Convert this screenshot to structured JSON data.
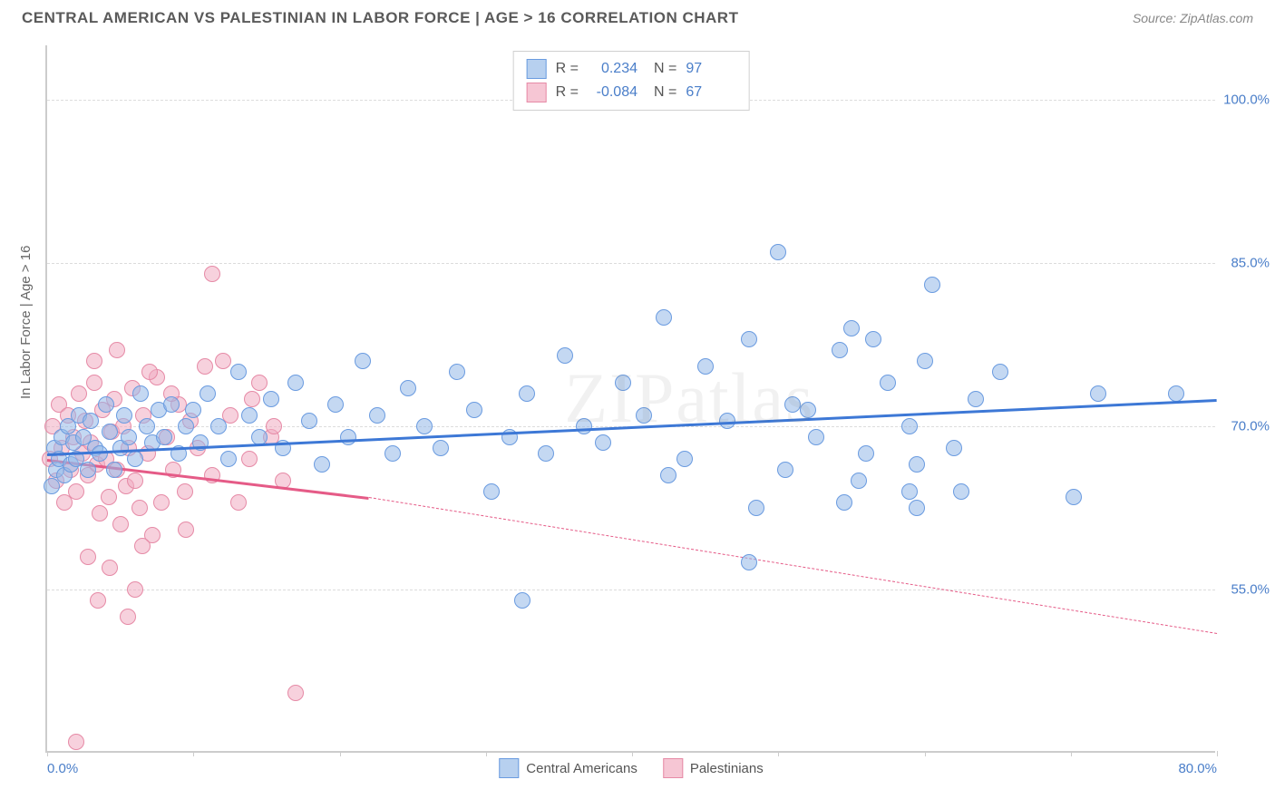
{
  "header": {
    "title": "CENTRAL AMERICAN VS PALESTINIAN IN LABOR FORCE | AGE > 16 CORRELATION CHART",
    "source_prefix": "Source: ",
    "source_name": "ZipAtlas.com"
  },
  "chart": {
    "type": "scatter",
    "ylabel": "In Labor Force | Age > 16",
    "watermark": "ZIPatlas",
    "background_color": "#ffffff",
    "grid_color": "#dcdcdc",
    "axis_color": "#cccccc",
    "tick_label_color": "#4a7ec9",
    "xlim": [
      0,
      80
    ],
    "ylim": [
      40,
      105
    ],
    "yticks": [
      {
        "v": 55.0,
        "label": "55.0%"
      },
      {
        "v": 70.0,
        "label": "70.0%"
      },
      {
        "v": 85.0,
        "label": "85.0%"
      },
      {
        "v": 100.0,
        "label": "100.0%"
      }
    ],
    "xticks": [
      {
        "v": 0.0,
        "label": "0.0%",
        "pos": "first"
      },
      {
        "v": 80.0,
        "label": "80.0%",
        "pos": "last"
      }
    ],
    "xtick_marks": [
      0,
      10,
      20,
      30,
      40,
      50,
      60,
      70,
      80
    ],
    "legend_top": {
      "rows": [
        {
          "swatch_fill": "#b7d0ef",
          "swatch_border": "#6a9be0",
          "r_label": "R =",
          "r_val": "0.234",
          "n_label": "N =",
          "n_val": "97"
        },
        {
          "swatch_fill": "#f6c6d4",
          "swatch_border": "#e68aa6",
          "r_label": "R =",
          "r_val": "-0.084",
          "n_label": "N =",
          "n_val": "67"
        }
      ]
    },
    "legend_bottom": {
      "items": [
        {
          "swatch_fill": "#b7d0ef",
          "swatch_border": "#6a9be0",
          "label": "Central Americans"
        },
        {
          "swatch_fill": "#f6c6d4",
          "swatch_border": "#e68aa6",
          "label": "Palestinians"
        }
      ]
    },
    "series_blue": {
      "marker_fill": "rgba(147,184,232,0.55)",
      "marker_stroke": "#6a9be0",
      "marker_radius": 9,
      "trend_color": "#3d78d6",
      "trend_solid": {
        "x1": 0,
        "y1": 67.5,
        "x2": 80,
        "y2": 72.5
      },
      "points": [
        [
          0.3,
          64.5
        ],
        [
          0.5,
          68
        ],
        [
          0.6,
          66
        ],
        [
          0.8,
          67
        ],
        [
          1.0,
          69
        ],
        [
          1.2,
          65.5
        ],
        [
          1.4,
          70
        ],
        [
          1.6,
          66.5
        ],
        [
          1.8,
          68.5
        ],
        [
          2.0,
          67
        ],
        [
          2.2,
          71
        ],
        [
          2.5,
          69
        ],
        [
          2.8,
          66
        ],
        [
          3.0,
          70.5
        ],
        [
          3.3,
          68
        ],
        [
          3.6,
          67.5
        ],
        [
          4.0,
          72
        ],
        [
          4.3,
          69.5
        ],
        [
          4.6,
          66
        ],
        [
          5.0,
          68
        ],
        [
          5.3,
          71
        ],
        [
          5.6,
          69
        ],
        [
          6.0,
          67
        ],
        [
          6.4,
          73
        ],
        [
          6.8,
          70
        ],
        [
          7.2,
          68.5
        ],
        [
          7.6,
          71.5
        ],
        [
          8.0,
          69
        ],
        [
          8.5,
          72
        ],
        [
          9.0,
          67.5
        ],
        [
          9.5,
          70
        ],
        [
          10.0,
          71.5
        ],
        [
          10.5,
          68.5
        ],
        [
          11.0,
          73
        ],
        [
          11.7,
          70
        ],
        [
          12.4,
          67
        ],
        [
          13.1,
          75
        ],
        [
          13.8,
          71
        ],
        [
          14.5,
          69
        ],
        [
          15.3,
          72.5
        ],
        [
          16.1,
          68
        ],
        [
          17.0,
          74
        ],
        [
          17.9,
          70.5
        ],
        [
          18.8,
          66.5
        ],
        [
          19.7,
          72
        ],
        [
          20.6,
          69
        ],
        [
          21.6,
          76
        ],
        [
          22.6,
          71
        ],
        [
          23.6,
          67.5
        ],
        [
          24.7,
          73.5
        ],
        [
          25.8,
          70
        ],
        [
          26.9,
          68
        ],
        [
          28.0,
          75
        ],
        [
          29.2,
          71.5
        ],
        [
          30.4,
          64
        ],
        [
          31.6,
          69
        ],
        [
          32.8,
          73
        ],
        [
          34.1,
          67.5
        ],
        [
          35.4,
          76.5
        ],
        [
          36.7,
          70
        ],
        [
          32.5,
          54
        ],
        [
          38.0,
          68.5
        ],
        [
          39.4,
          74
        ],
        [
          40.8,
          71
        ],
        [
          42.2,
          80
        ],
        [
          43.6,
          67
        ],
        [
          45.0,
          75.5
        ],
        [
          46.5,
          70.5
        ],
        [
          48.0,
          78
        ],
        [
          42.5,
          65.5
        ],
        [
          48.5,
          62.5
        ],
        [
          51.0,
          72
        ],
        [
          52.6,
          69
        ],
        [
          54.2,
          77
        ],
        [
          50.5,
          66
        ],
        [
          52.0,
          71.5
        ],
        [
          50.0,
          86
        ],
        [
          55.0,
          79
        ],
        [
          54.5,
          63
        ],
        [
          56.0,
          67.5
        ],
        [
          57.5,
          74
        ],
        [
          59.0,
          70
        ],
        [
          60.5,
          83
        ],
        [
          62.0,
          68
        ],
        [
          48.0,
          57.5
        ],
        [
          65.2,
          75
        ],
        [
          55.5,
          65
        ],
        [
          59.5,
          66.5
        ],
        [
          70.2,
          63.5
        ],
        [
          71.9,
          73
        ],
        [
          59.0,
          64
        ],
        [
          59.5,
          62.5
        ],
        [
          77.2,
          73
        ],
        [
          60.0,
          76
        ],
        [
          63.5,
          72.5
        ],
        [
          62.5,
          64
        ],
        [
          56.5,
          78
        ]
      ]
    },
    "series_pink": {
      "marker_fill": "rgba(241,172,193,0.55)",
      "marker_stroke": "#e68aa6",
      "marker_radius": 9,
      "trend_color": "#e55b87",
      "trend_solid": {
        "x1": 0,
        "y1": 67.0,
        "x2": 22,
        "y2": 63.5
      },
      "trend_dash": {
        "x1": 22,
        "y1": 63.5,
        "x2": 80,
        "y2": 51.0
      },
      "points": [
        [
          0.2,
          67
        ],
        [
          0.4,
          70
        ],
        [
          0.6,
          65
        ],
        [
          0.8,
          72
        ],
        [
          1.0,
          68
        ],
        [
          1.2,
          63
        ],
        [
          1.4,
          71
        ],
        [
          1.6,
          66
        ],
        [
          1.8,
          69
        ],
        [
          2.0,
          64
        ],
        [
          2.2,
          73
        ],
        [
          2.4,
          67.5
        ],
        [
          2.6,
          70.5
        ],
        [
          2.8,
          65.5
        ],
        [
          3.0,
          68.5
        ],
        [
          3.2,
          74
        ],
        [
          3.4,
          66.5
        ],
        [
          3.6,
          62
        ],
        [
          3.8,
          71.5
        ],
        [
          4.0,
          67
        ],
        [
          4.2,
          63.5
        ],
        [
          4.4,
          69.5
        ],
        [
          4.6,
          72.5
        ],
        [
          4.8,
          66
        ],
        [
          5.0,
          61
        ],
        [
          5.2,
          70
        ],
        [
          5.4,
          64.5
        ],
        [
          5.6,
          68
        ],
        [
          5.8,
          73.5
        ],
        [
          6.0,
          65
        ],
        [
          6.3,
          62.5
        ],
        [
          6.6,
          71
        ],
        [
          6.9,
          67.5
        ],
        [
          7.2,
          60
        ],
        [
          7.5,
          74.5
        ],
        [
          7.8,
          63
        ],
        [
          8.2,
          69
        ],
        [
          8.6,
          66
        ],
        [
          9.0,
          72
        ],
        [
          9.4,
          64
        ],
        [
          9.8,
          70.5
        ],
        [
          10.3,
          68
        ],
        [
          10.8,
          75.5
        ],
        [
          11.3,
          65.5
        ],
        [
          11.3,
          84
        ],
        [
          12.5,
          71
        ],
        [
          13.1,
          63
        ],
        [
          13.8,
          67
        ],
        [
          14.5,
          74
        ],
        [
          15.3,
          69
        ],
        [
          16.1,
          65
        ],
        [
          6.0,
          55
        ],
        [
          5.5,
          52.5
        ],
        [
          4.3,
          57
        ],
        [
          3.5,
          54
        ],
        [
          6.5,
          59
        ],
        [
          17.0,
          45.5
        ],
        [
          2.0,
          41
        ],
        [
          2.8,
          58
        ],
        [
          9.5,
          60.5
        ],
        [
          3.2,
          76
        ],
        [
          4.8,
          77
        ],
        [
          7.0,
          75
        ],
        [
          8.5,
          73
        ],
        [
          12.0,
          76
        ],
        [
          14.0,
          72.5
        ],
        [
          15.5,
          70
        ]
      ]
    }
  }
}
